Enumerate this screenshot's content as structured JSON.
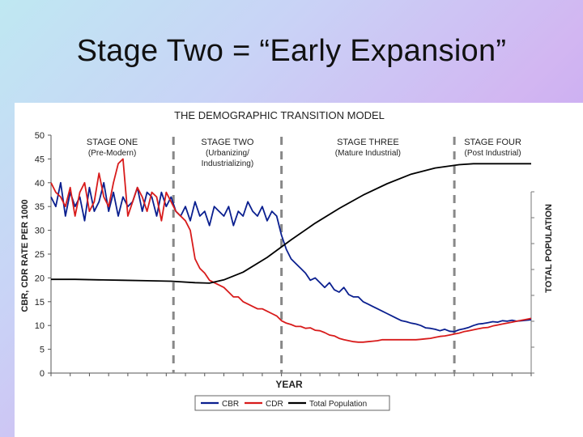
{
  "slide": {
    "title": "Stage Two = “Early Expansion”"
  },
  "chart_data": {
    "type": "line",
    "title": "THE DEMOGRAPHIC TRANSITION MODEL",
    "ylabel": "CBR, CDR RATE PER 1000",
    "y2label": "TOTAL POPULATION",
    "xlabel": "YEAR",
    "ylim": [
      0,
      50
    ],
    "yticks": [
      0,
      5,
      10,
      15,
      20,
      25,
      30,
      35,
      40,
      45,
      50
    ],
    "xlim": [
      0,
      100
    ],
    "stages": [
      {
        "name": "STAGE ONE",
        "desc": [
          "(Pre-Modern)"
        ],
        "start": 0,
        "end": 25.5
      },
      {
        "name": "STAGE TWO",
        "desc": [
          "(Urbanizing/",
          "Industrializing)"
        ],
        "start": 25.5,
        "end": 48
      },
      {
        "name": "STAGE THREE",
        "desc": [
          "(Mature Industrial)"
        ],
        "start": 48,
        "end": 84
      },
      {
        "name": "STAGE FOUR",
        "desc": [
          "(Post Industrial)"
        ],
        "start": 84,
        "end": 100
      }
    ],
    "stage_dividers": [
      25.5,
      48,
      84
    ],
    "series": [
      {
        "name": "CBR",
        "color": "#0a1f8f",
        "x": [
          0,
          1,
          2,
          3,
          4,
          5,
          6,
          7,
          8,
          9,
          10,
          11,
          12,
          13,
          14,
          15,
          16,
          17,
          18,
          19,
          20,
          21,
          22,
          23,
          24,
          25,
          26,
          27,
          28,
          29,
          30,
          31,
          32,
          33,
          34,
          35,
          36,
          37,
          38,
          39,
          40,
          41,
          42,
          43,
          44,
          45,
          46,
          47,
          48,
          49,
          50,
          51,
          52,
          53,
          54,
          55,
          56,
          57,
          58,
          59,
          60,
          61,
          62,
          63,
          64,
          65,
          66,
          67,
          68,
          69,
          70,
          71,
          72,
          73,
          74,
          75,
          76,
          77,
          78,
          79,
          80,
          81,
          82,
          83,
          84,
          85,
          86,
          87,
          88,
          89,
          90,
          91,
          92,
          93,
          94,
          95,
          96,
          97,
          98,
          99,
          100
        ],
        "y": [
          37,
          35,
          40,
          33,
          38,
          35,
          37,
          32,
          39,
          34,
          36,
          40,
          34,
          38,
          33,
          37,
          35,
          36,
          39,
          34,
          38,
          37,
          33,
          38,
          35,
          37,
          34,
          33,
          35,
          32,
          36,
          33,
          34,
          31,
          35,
          34,
          33,
          35,
          31,
          34,
          33,
          36,
          34,
          33,
          35,
          32,
          34,
          33,
          29,
          26,
          24,
          23,
          22,
          21,
          19.5,
          20,
          19,
          18,
          19,
          17.5,
          17,
          18,
          16.5,
          16,
          16,
          15,
          14.5,
          14,
          13.5,
          13,
          12.5,
          12,
          11.5,
          11,
          10.8,
          10.5,
          10.3,
          10,
          9.5,
          9.4,
          9.2,
          8.9,
          9.2,
          8.8,
          8.7,
          9.1,
          9.3,
          9.6,
          10,
          10.3,
          10.4,
          10.6,
          10.8,
          10.7,
          11,
          10.9,
          11.1,
          10.9,
          11,
          11.1,
          11.2
        ]
      },
      {
        "name": "CDR",
        "color": "#d81b1b",
        "x": [
          0,
          1,
          2,
          3,
          4,
          5,
          6,
          7,
          8,
          9,
          10,
          11,
          12,
          13,
          14,
          15,
          16,
          17,
          18,
          19,
          20,
          21,
          22,
          23,
          24,
          25,
          26,
          27,
          28,
          29,
          30,
          31,
          32,
          33,
          34,
          35,
          36,
          37,
          38,
          39,
          40,
          41,
          42,
          43,
          44,
          45,
          46,
          47,
          48,
          49,
          50,
          51,
          52,
          53,
          54,
          55,
          56,
          57,
          58,
          59,
          60,
          61,
          62,
          63,
          64,
          65,
          66,
          67,
          68,
          69,
          70,
          71,
          72,
          73,
          74,
          75,
          76,
          77,
          78,
          79,
          80,
          81,
          82,
          83,
          84,
          85,
          86,
          87,
          88,
          89,
          90,
          91,
          92,
          93,
          94,
          95,
          96,
          97,
          98,
          99,
          100
        ],
        "y": [
          40,
          38,
          37,
          35,
          39,
          33,
          38,
          40,
          34,
          36,
          42,
          37,
          35,
          40,
          44,
          45,
          33,
          36,
          39,
          37,
          34,
          38,
          37,
          32,
          38,
          36,
          34,
          33,
          32,
          30,
          24,
          22,
          21,
          19.5,
          19,
          18.5,
          18,
          17,
          16,
          16,
          15,
          14.5,
          14,
          13.5,
          13.5,
          13,
          12.5,
          12,
          11,
          10.5,
          10.2,
          9.8,
          9.8,
          9.4,
          9.5,
          9,
          8.9,
          8.5,
          8,
          7.8,
          7.3,
          7,
          6.8,
          6.6,
          6.5,
          6.5,
          6.6,
          6.7,
          6.8,
          7,
          7,
          7,
          7,
          7,
          7,
          7,
          7,
          7.1,
          7.2,
          7.3,
          7.5,
          7.7,
          7.8,
          8,
          8.2,
          8.4,
          8.7,
          8.9,
          9.1,
          9.3,
          9.5,
          9.6,
          9.9,
          10.1,
          10.3,
          10.5,
          10.7,
          10.9,
          11.1,
          11.3,
          11.5
        ]
      },
      {
        "name": "Total Population",
        "color": "#000000",
        "x": [
          0,
          5,
          10,
          15,
          20,
          25,
          30,
          33,
          36,
          40,
          45,
          50,
          55,
          60,
          65,
          70,
          75,
          80,
          85,
          88,
          92,
          96,
          100
        ],
        "y": [
          19.7,
          19.7,
          19.6,
          19.5,
          19.4,
          19.3,
          19.0,
          18.9,
          19.6,
          21.2,
          24.3,
          28.0,
          31.5,
          34.6,
          37.4,
          39.8,
          41.8,
          43.1,
          43.8,
          44.0,
          44.0,
          44.0,
          44.0
        ]
      }
    ],
    "legend": {
      "position": "bottom",
      "entries": [
        "CBR",
        "CDR",
        "Total Population"
      ]
    }
  }
}
